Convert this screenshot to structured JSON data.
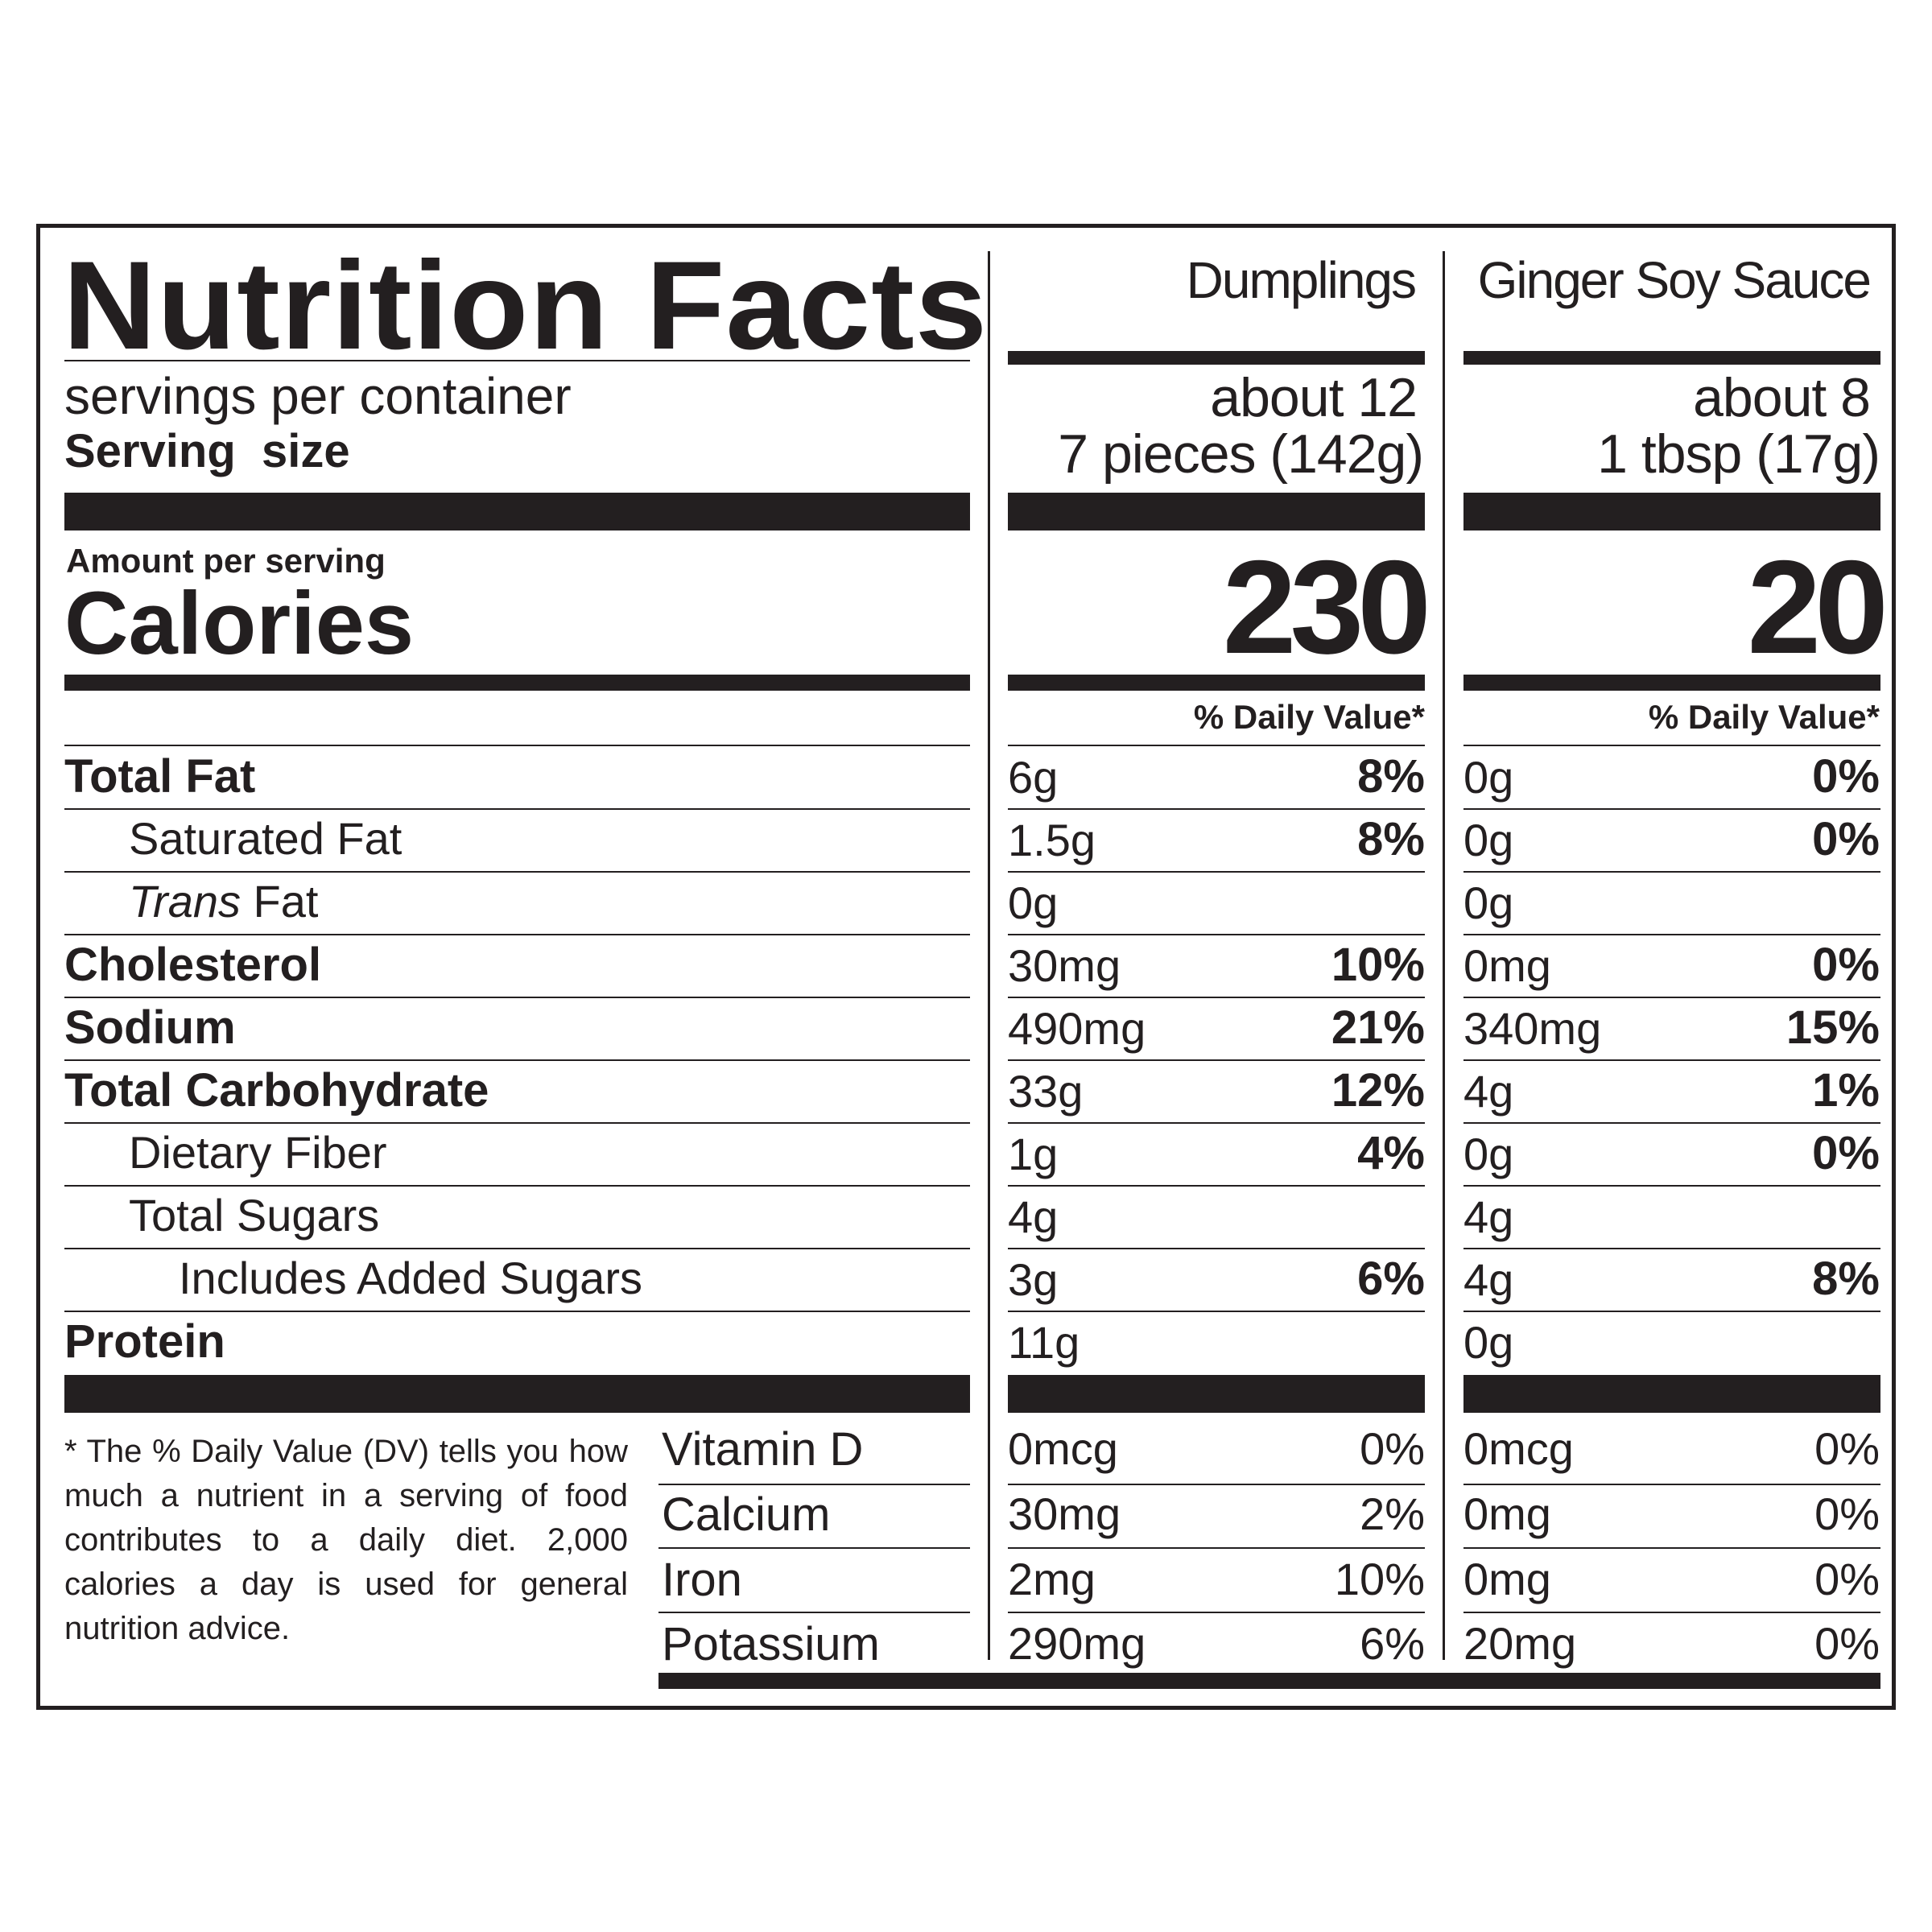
{
  "title": "Nutrition Facts",
  "columns": [
    {
      "name": "Dumplings",
      "servings": "about 12",
      "serving_size": "7 pieces (142g)",
      "calories": "230",
      "dv_header": "% Daily Value*"
    },
    {
      "name": "Ginger Soy Sauce",
      "servings": "about 8",
      "serving_size": "1 tbsp (17g)",
      "calories": "20",
      "dv_header": "% Daily Value*"
    }
  ],
  "servings_label": "servings per container",
  "serving_size_label": "Serving  size",
  "amount_per_serving": "Amount per serving",
  "calories_label": "Calories",
  "nutrients": [
    {
      "label": "Total Fat",
      "values": [
        {
          "amount": "6g",
          "dv": "8%"
        },
        {
          "amount": "0g",
          "dv": "0%"
        }
      ]
    },
    {
      "label": "Saturated Fat",
      "values": [
        {
          "amount": "1.5g",
          "dv": "8%"
        },
        {
          "amount": "0g",
          "dv": "0%"
        }
      ]
    },
    {
      "label_italic": "Trans",
      "label": " Fat",
      "values": [
        {
          "amount": "0g",
          "dv": ""
        },
        {
          "amount": "0g",
          "dv": ""
        }
      ]
    },
    {
      "label": "Cholesterol",
      "values": [
        {
          "amount": "30mg",
          "dv": "10%"
        },
        {
          "amount": "0mg",
          "dv": "0%"
        }
      ]
    },
    {
      "label": "Sodium",
      "values": [
        {
          "amount": "490mg",
          "dv": "21%"
        },
        {
          "amount": "340mg",
          "dv": "15%"
        }
      ]
    },
    {
      "label": "Total Carbohydrate",
      "values": [
        {
          "amount": "33g",
          "dv": "12%"
        },
        {
          "amount": "4g",
          "dv": "1%"
        }
      ]
    },
    {
      "label": "Dietary Fiber",
      "values": [
        {
          "amount": "1g",
          "dv": "4%"
        },
        {
          "amount": "0g",
          "dv": "0%"
        }
      ]
    },
    {
      "label": "Total Sugars",
      "values": [
        {
          "amount": "4g",
          "dv": ""
        },
        {
          "amount": "4g",
          "dv": ""
        }
      ]
    },
    {
      "label": "Includes Added Sugars",
      "values": [
        {
          "amount": "3g",
          "dv": "6%"
        },
        {
          "amount": "4g",
          "dv": "8%"
        }
      ]
    },
    {
      "label": "Protein",
      "values": [
        {
          "amount": "11g",
          "dv": ""
        },
        {
          "amount": "0g",
          "dv": ""
        }
      ]
    }
  ],
  "vitamins": [
    {
      "label": "Vitamin D",
      "values": [
        {
          "amount": "0mcg",
          "dv": "0%"
        },
        {
          "amount": "0mcg",
          "dv": "0%"
        }
      ]
    },
    {
      "label": "Calcium",
      "values": [
        {
          "amount": "30mg",
          "dv": "2%"
        },
        {
          "amount": "0mg",
          "dv": "0%"
        }
      ]
    },
    {
      "label": "Iron",
      "values": [
        {
          "amount": "2mg",
          "dv": "10%"
        },
        {
          "amount": "0mg",
          "dv": "0%"
        }
      ]
    },
    {
      "label": "Potassium",
      "values": [
        {
          "amount": "290mg",
          "dv": "6%"
        },
        {
          "amount": "20mg",
          "dv": "0%"
        }
      ]
    }
  ],
  "footnote": "* The % Daily Value (DV) tells you how much a nutrient in a serving of food contributes to a daily diet. 2,000 calories a day is used for general nutrition advice."
}
